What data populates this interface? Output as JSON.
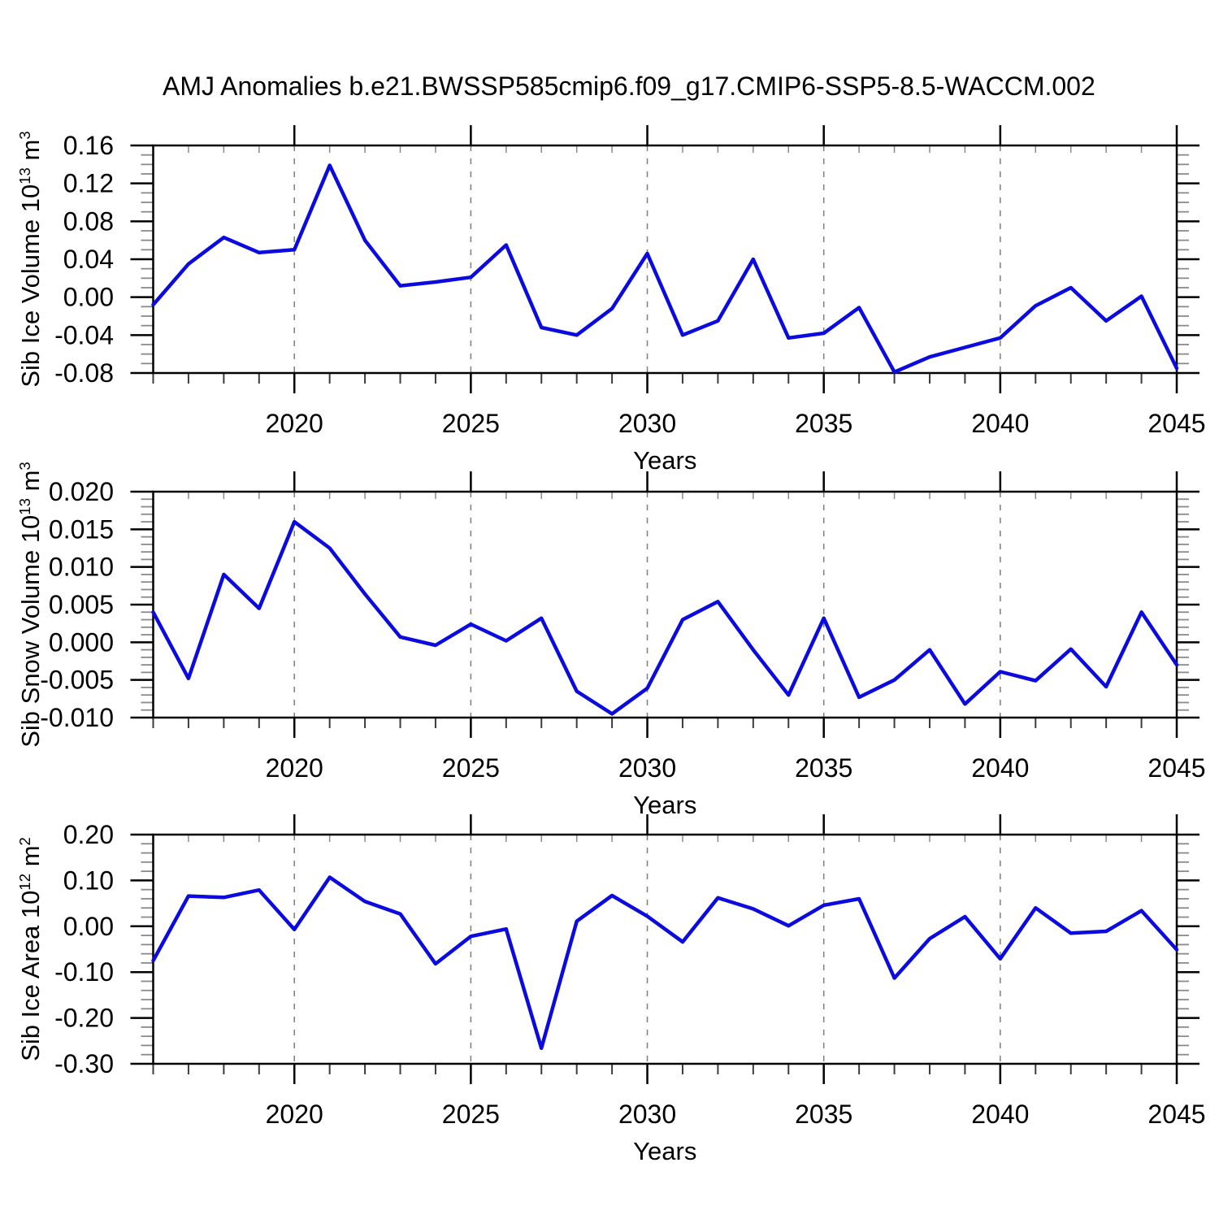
{
  "title": "AMJ Anomalies b.e21.BWSSP585cmip6.f09_g17.CMIP6-SSP5-8.5-WACCM.002",
  "colors": {
    "line": "#0b0bdf",
    "grid": "#7d7d7d",
    "frame": "#000000",
    "minor_tick": "#3c3c3c",
    "minor_tick_light": "#8a8a8a",
    "text": "#000000",
    "background": "#ffffff"
  },
  "chart_data": [
    {
      "type": "line",
      "title": "",
      "xlabel": "Years",
      "ylabel_plain": "Sib Ice Volume 10^13 m^3",
      "ylabel_segments": [
        {
          "t": "Sib Ice Volume 10"
        },
        {
          "t": "13",
          "sup": true
        },
        {
          "t": " m"
        },
        {
          "t": "3",
          "sup": true
        }
      ],
      "xlim": [
        2016,
        2045
      ],
      "ylim": [
        -0.08,
        0.16
      ],
      "x_major_ticks": [
        2020,
        2025,
        2030,
        2035,
        2040,
        2045
      ],
      "x_tick_labels": [
        "2020",
        "2025",
        "2030",
        "2035",
        "2040",
        "2045"
      ],
      "x_minor_step": 1,
      "grid_x": [
        2020,
        2025,
        2030,
        2035,
        2040
      ],
      "y_tick_labels": [
        "0.16",
        "0.12",
        "0.08",
        "0.04",
        "0.00",
        "-0.04",
        "-0.08"
      ],
      "y_tick_values": [
        0.16,
        0.12,
        0.08,
        0.04,
        0.0,
        -0.04,
        -0.08
      ],
      "y_minor_step": 0.01,
      "x": [
        2016,
        2017,
        2018,
        2019,
        2020,
        2021,
        2022,
        2023,
        2024,
        2025,
        2026,
        2027,
        2028,
        2029,
        2030,
        2031,
        2032,
        2033,
        2034,
        2035,
        2036,
        2037,
        2038,
        2039,
        2040,
        2041,
        2042,
        2043,
        2044,
        2045
      ],
      "values": [
        -0.008,
        0.035,
        0.063,
        0.047,
        0.05,
        0.139,
        0.06,
        0.012,
        0.016,
        0.021,
        0.055,
        -0.032,
        -0.04,
        -0.012,
        0.046,
        -0.04,
        -0.025,
        0.04,
        -0.043,
        -0.038,
        -0.011,
        -0.079,
        -0.063,
        -0.053,
        -0.043,
        -0.009,
        0.01,
        -0.025,
        0.001,
        -0.075
      ]
    },
    {
      "type": "line",
      "title": "",
      "xlabel": "Years",
      "ylabel_plain": "Sib Snow Volume 10^13 m^3",
      "ylabel_segments": [
        {
          "t": "Sib Snow Volume 10"
        },
        {
          "t": "13",
          "sup": true
        },
        {
          "t": " m"
        },
        {
          "t": "3",
          "sup": true
        }
      ],
      "xlim": [
        2016,
        2045
      ],
      "ylim": [
        -0.01,
        0.02
      ],
      "x_major_ticks": [
        2020,
        2025,
        2030,
        2035,
        2040,
        2045
      ],
      "x_tick_labels": [
        "2020",
        "2025",
        "2030",
        "2035",
        "2040",
        "2045"
      ],
      "x_minor_step": 1,
      "grid_x": [
        2020,
        2025,
        2030,
        2035,
        2040
      ],
      "y_tick_labels": [
        "0.020",
        "0.015",
        "0.010",
        "0.005",
        "0.000",
        "-0.005",
        "-0.010"
      ],
      "y_tick_values": [
        0.02,
        0.015,
        0.01,
        0.005,
        0.0,
        -0.005,
        -0.01
      ],
      "y_minor_step": 0.001,
      "x": [
        2016,
        2017,
        2018,
        2019,
        2020,
        2021,
        2022,
        2023,
        2024,
        2025,
        2026,
        2027,
        2028,
        2029,
        2030,
        2031,
        2032,
        2033,
        2034,
        2035,
        2036,
        2037,
        2038,
        2039,
        2040,
        2041,
        2042,
        2043,
        2044,
        2045
      ],
      "values": [
        0.004,
        -0.0048,
        0.009,
        0.0045,
        0.016,
        0.0125,
        0.0064,
        0.0007,
        -0.0004,
        0.0024,
        0.0002,
        0.0032,
        -0.0065,
        -0.0095,
        -0.0061,
        0.003,
        0.0054,
        -0.001,
        -0.007,
        0.0032,
        -0.0073,
        -0.005,
        -0.001,
        -0.0082,
        -0.0039,
        -0.0051,
        -0.0009,
        -0.0059,
        0.004,
        -0.003
      ]
    },
    {
      "type": "line",
      "title": "",
      "xlabel": "Years",
      "ylabel_plain": "Sib Ice Area 10^12 m^2",
      "ylabel_segments": [
        {
          "t": "Sib Ice Area 10"
        },
        {
          "t": "12",
          "sup": true
        },
        {
          "t": " m"
        },
        {
          "t": "2",
          "sup": true
        }
      ],
      "xlim": [
        2016,
        2045
      ],
      "ylim": [
        -0.3,
        0.2
      ],
      "x_major_ticks": [
        2020,
        2025,
        2030,
        2035,
        2040,
        2045
      ],
      "x_tick_labels": [
        "2020",
        "2025",
        "2030",
        "2035",
        "2040",
        "2045"
      ],
      "x_minor_step": 1,
      "grid_x": [
        2020,
        2025,
        2030,
        2035,
        2040
      ],
      "y_tick_labels": [
        "0.20",
        "0.10",
        "0.00",
        "-0.10",
        "-0.20",
        "-0.30"
      ],
      "y_tick_values": [
        0.2,
        0.1,
        0.0,
        -0.1,
        -0.2,
        -0.3
      ],
      "y_minor_step": 0.02,
      "x": [
        2016,
        2017,
        2018,
        2019,
        2020,
        2021,
        2022,
        2023,
        2024,
        2025,
        2026,
        2027,
        2028,
        2029,
        2030,
        2031,
        2032,
        2033,
        2034,
        2035,
        2036,
        2037,
        2038,
        2039,
        2040,
        2041,
        2042,
        2043,
        2044,
        2045
      ],
      "values": [
        -0.075,
        0.066,
        0.063,
        0.079,
        -0.007,
        0.107,
        0.054,
        0.027,
        -0.082,
        -0.022,
        -0.006,
        -0.266,
        0.011,
        0.067,
        0.022,
        -0.034,
        0.062,
        0.038,
        0.001,
        0.046,
        0.06,
        -0.113,
        -0.027,
        0.021,
        -0.071,
        0.04,
        -0.015,
        -0.011,
        0.034,
        -0.051
      ]
    }
  ]
}
